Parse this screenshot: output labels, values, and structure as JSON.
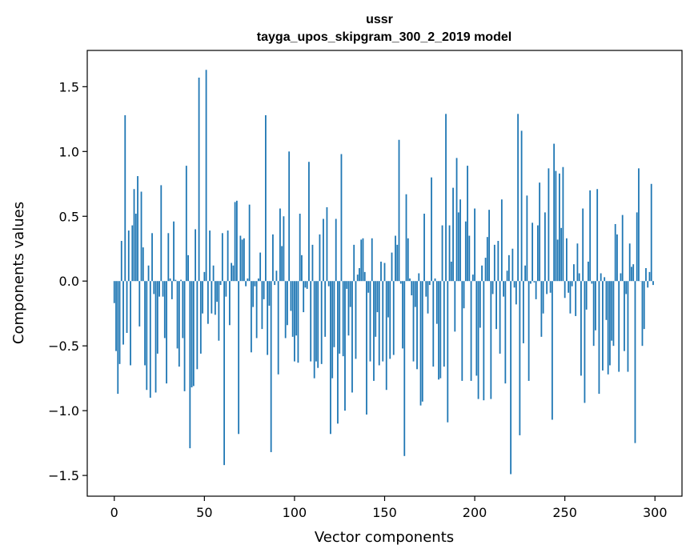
{
  "chart_data": {
    "type": "bar",
    "title_line1": "ussr",
    "title_line2": "tayga_upos_skipgram_300_2_2019 model",
    "xlabel": "Vector components",
    "ylabel": "Components values",
    "xlim": [
      -15,
      315
    ],
    "ylim": [
      -1.66,
      1.78
    ],
    "xticks": [
      0,
      50,
      100,
      150,
      200,
      250,
      300
    ],
    "yticks": [
      -1.5,
      -1.0,
      -0.5,
      0.0,
      0.5,
      1.0,
      1.5
    ],
    "xtick_labels": [
      "0",
      "50",
      "100",
      "150",
      "200",
      "250",
      "300"
    ],
    "ytick_labels": [
      "−1.5",
      "−1.0",
      "−0.5",
      "0.0",
      "0.5",
      "1.0",
      "1.5"
    ],
    "color": "#1f77b4",
    "grid": false,
    "values": [
      -0.17,
      -0.54,
      -0.87,
      -0.64,
      0.31,
      -0.49,
      1.28,
      -0.4,
      0.39,
      -0.65,
      0.43,
      0.71,
      0.52,
      0.81,
      -0.35,
      0.69,
      0.26,
      -0.65,
      -0.84,
      0.12,
      -0.9,
      0.37,
      -0.1,
      -0.86,
      -0.56,
      -0.12,
      0.74,
      -0.12,
      -0.44,
      -0.79,
      0.37,
      0.02,
      -0.14,
      0.46,
      0.01,
      -0.52,
      -0.66,
      0.01,
      -0.44,
      -0.85,
      0.89,
      0.2,
      -1.29,
      -0.82,
      -0.81,
      0.4,
      -0.68,
      1.57,
      -0.56,
      -0.25,
      0.07,
      1.63,
      -0.33,
      0.39,
      -0.25,
      0.12,
      -0.26,
      -0.16,
      -0.46,
      -0.03,
      0.37,
      -1.42,
      -0.12,
      0.39,
      -0.34,
      0.14,
      0.12,
      0.61,
      0.62,
      -1.18,
      0.35,
      0.32,
      0.33,
      -0.04,
      0.02,
      0.59,
      -0.55,
      -0.2,
      -0.04,
      -0.44,
      0.02,
      0.22,
      -0.37,
      -0.14,
      1.28,
      -0.57,
      -0.19,
      -1.32,
      0.36,
      -0.03,
      0.08,
      -0.72,
      0.56,
      0.27,
      0.5,
      -0.44,
      -0.34,
      1.0,
      -0.23,
      -0.43,
      -0.62,
      -0.42,
      -0.63,
      0.52,
      0.2,
      -0.24,
      -0.05,
      -0.06,
      0.92,
      -0.62,
      0.28,
      -0.75,
      -0.62,
      -0.67,
      0.36,
      -0.64,
      0.48,
      -0.43,
      0.57,
      -0.04,
      -1.18,
      -0.75,
      -0.51,
      0.48,
      -1.1,
      -0.56,
      0.98,
      -0.58,
      -1.0,
      -0.06,
      -0.42,
      -0.2,
      -0.86,
      0.28,
      -0.6,
      0.05,
      0.1,
      0.32,
      0.33,
      0.07,
      -1.03,
      -0.09,
      -0.62,
      0.33,
      -0.77,
      -0.43,
      -0.24,
      -0.65,
      0.15,
      -0.62,
      0.14,
      -0.84,
      -0.28,
      -0.6,
      0.22,
      -0.57,
      0.35,
      0.28,
      1.09,
      -0.02,
      -0.52,
      -1.35,
      0.67,
      0.33,
      0.02,
      -0.11,
      -0.62,
      -0.2,
      -0.68,
      0.06,
      -0.96,
      -0.93,
      0.52,
      -0.12,
      -0.25,
      -0.03,
      0.8,
      -0.66,
      0.02,
      -0.33,
      -0.76,
      -0.75,
      0.43,
      -0.66,
      1.29,
      -1.09,
      0.43,
      0.15,
      0.72,
      -0.39,
      0.95,
      0.53,
      0.63,
      -0.77,
      -0.21,
      0.46,
      0.89,
      0.35,
      -0.77,
      0.05,
      0.56,
      -0.73,
      -0.91,
      -0.36,
      0.12,
      -0.92,
      0.18,
      0.34,
      0.55,
      -0.91,
      -0.1,
      0.28,
      -0.37,
      0.31,
      -0.56,
      0.63,
      -0.12,
      -0.79,
      0.08,
      0.2,
      -1.49,
      0.25,
      -0.05,
      -0.18,
      1.29,
      -1.19,
      1.16,
      -0.48,
      0.12,
      0.66,
      -0.77,
      -0.02,
      0.45,
      -0.01,
      -0.14,
      0.43,
      0.76,
      -0.43,
      -0.25,
      0.53,
      -0.1,
      0.87,
      -0.09,
      -1.07,
      1.06,
      0.85,
      0.32,
      0.83,
      0.41,
      0.88,
      -0.13,
      0.33,
      -0.09,
      -0.25,
      -0.04,
      0.13,
      -0.27,
      0.29,
      0.06,
      -0.73,
      0.56,
      -0.94,
      -0.22,
      0.15,
      0.7,
      -0.02,
      -0.5,
      -0.38,
      0.71,
      -0.87,
      0.06,
      -0.69,
      0.03,
      -0.3,
      -0.72,
      -0.65,
      -0.46,
      -0.5,
      0.44,
      0.36,
      -0.7,
      0.06,
      0.51,
      -0.54,
      -0.1,
      -0.7,
      0.29,
      0.11,
      0.13,
      -1.25,
      0.53,
      0.87,
      0.0,
      -0.5,
      -0.37,
      0.1,
      -0.05,
      0.07,
      0.75,
      -0.03
    ]
  }
}
